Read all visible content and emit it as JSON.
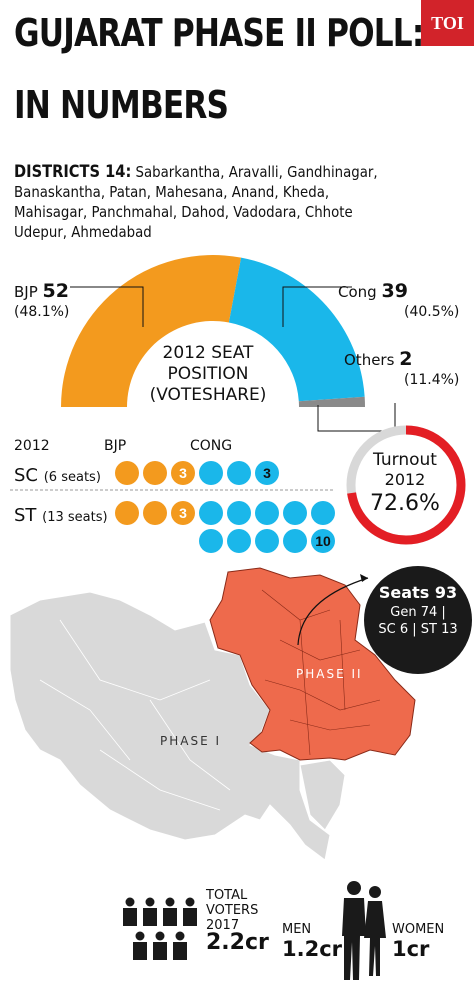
{
  "header": {
    "title_line1": "GUJARAT PHASE II POLL:",
    "title_line2": "IN NUMBERS",
    "logo": "TOI"
  },
  "districts": {
    "label": "DISTRICTS 14:",
    "list": "Sabarkantha, Aravalli, Gandhinagar, Banaskantha, Patan, Mahesana, Anand, Kheda, Mahisagar, Panchmahal, Dahod, Vadodara, Chhote Udepur, Ahmedabad"
  },
  "seat_position": {
    "bjp_label": "BJP",
    "bjp_seats": "52",
    "bjp_pct": "(48.1%)",
    "cong_label": "Cong",
    "cong_seats": "39",
    "cong_pct": "(40.5%)",
    "others_label": "Others",
    "others_seats": "2",
    "others_pct": "(11.4%)",
    "center_line1": "2012 SEAT",
    "center_line2": "POSITION",
    "center_line3": "(VOTESHARE)"
  },
  "reserved": {
    "year": "2012",
    "bjp_head": "BJP",
    "cong_head": "CONG",
    "sc_label": "SC",
    "sc_sub": "(6 seats)",
    "sc_bjp": "3",
    "sc_cong": "3",
    "st_label": "ST",
    "st_sub": "(13 seats)",
    "st_bjp": "3",
    "st_cong": "10"
  },
  "turnout": {
    "label": "Turnout",
    "year": "2012",
    "value": "72.6%"
  },
  "seats": {
    "line1": "Seats 93",
    "line2": "Gen 74 |",
    "line3": "SC 6 | ST 13"
  },
  "map": {
    "phase1": "PHASE I",
    "phase2": "PHASE II"
  },
  "voters": {
    "total_line1": "TOTAL",
    "total_line2": "VOTERS",
    "total_line3": "2017",
    "total_value": "2.2cr",
    "men_label": "MEN",
    "men_value": "1.2cr",
    "women_label": "WOMEN",
    "women_value": "1cr"
  },
  "colors": {
    "bjp": "#f39a1e",
    "cong": "#1ab7ea",
    "others": "#8a8a8a",
    "turnout": "#e31e24",
    "phase2": "#ee6a4c",
    "phase1": "#d9d9d9"
  },
  "chart_data": [
    {
      "type": "pie",
      "title": "2012 SEAT POSITION (VOTESHARE)",
      "categories": [
        "BJP",
        "Cong",
        "Others"
      ],
      "values": [
        52,
        39,
        2
      ],
      "voteshare_pct": [
        48.1,
        40.5,
        11.4
      ]
    },
    {
      "type": "bar",
      "title": "2012",
      "categories": [
        "SC (6 seats)",
        "ST (13 seats)"
      ],
      "series": [
        {
          "name": "BJP",
          "values": [
            3,
            3
          ]
        },
        {
          "name": "CONG",
          "values": [
            3,
            10
          ]
        }
      ]
    },
    {
      "type": "pie",
      "title": "Turnout 2012",
      "values": [
        72.6
      ]
    }
  ]
}
